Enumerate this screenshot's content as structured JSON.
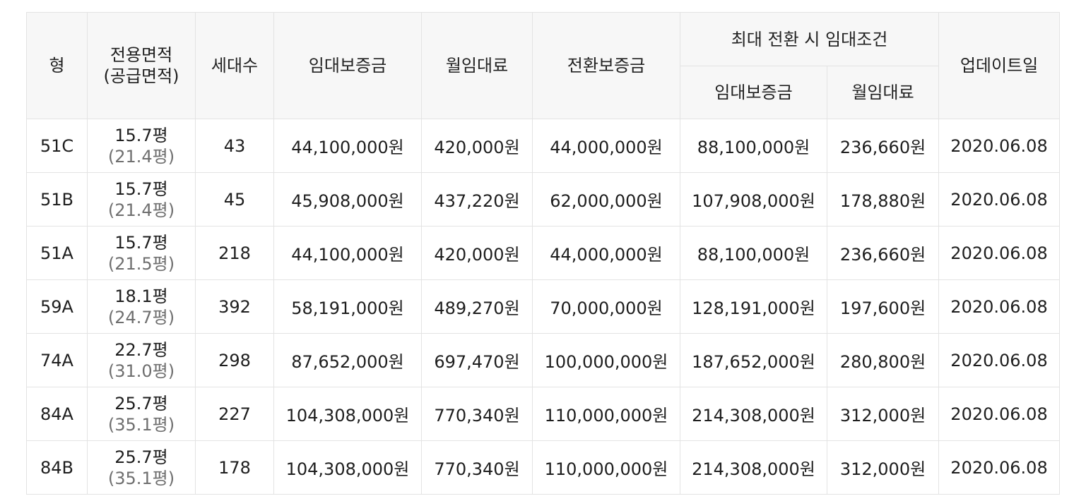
{
  "table": {
    "headers": {
      "type": "형",
      "area_line1": "전용면적",
      "area_line2": "(공급면적)",
      "households": "세대수",
      "deposit": "임대보증금",
      "monthly_rent": "월임대료",
      "conversion_deposit": "전환보증금",
      "max_conversion_group": "최대 전환 시 임대조건",
      "max_deposit": "임대보증금",
      "max_monthly_rent": "월임대료",
      "updated": "업데이트일"
    },
    "rows": [
      {
        "type": "51C",
        "area": "15.7평",
        "supply_area": "(21.4평)",
        "households": "43",
        "deposit": "44,100,000원",
        "monthly_rent": "420,000원",
        "conversion_deposit": "44,000,000원",
        "max_deposit": "88,100,000원",
        "max_monthly_rent": "236,660원",
        "updated": "2020.06.08"
      },
      {
        "type": "51B",
        "area": "15.7평",
        "supply_area": "(21.4평)",
        "households": "45",
        "deposit": "45,908,000원",
        "monthly_rent": "437,220원",
        "conversion_deposit": "62,000,000원",
        "max_deposit": "107,908,000원",
        "max_monthly_rent": "178,880원",
        "updated": "2020.06.08"
      },
      {
        "type": "51A",
        "area": "15.7평",
        "supply_area": "(21.5평)",
        "households": "218",
        "deposit": "44,100,000원",
        "monthly_rent": "420,000원",
        "conversion_deposit": "44,000,000원",
        "max_deposit": "88,100,000원",
        "max_monthly_rent": "236,660원",
        "updated": "2020.06.08"
      },
      {
        "type": "59A",
        "area": "18.1평",
        "supply_area": "(24.7평)",
        "households": "392",
        "deposit": "58,191,000원",
        "monthly_rent": "489,270원",
        "conversion_deposit": "70,000,000원",
        "max_deposit": "128,191,000원",
        "max_monthly_rent": "197,600원",
        "updated": "2020.06.08"
      },
      {
        "type": "74A",
        "area": "22.7평",
        "supply_area": "(31.0평)",
        "households": "298",
        "deposit": "87,652,000원",
        "monthly_rent": "697,470원",
        "conversion_deposit": "100,000,000원",
        "max_deposit": "187,652,000원",
        "max_monthly_rent": "280,800원",
        "updated": "2020.06.08"
      },
      {
        "type": "84A",
        "area": "25.7평",
        "supply_area": "(35.1평)",
        "households": "227",
        "deposit": "104,308,000원",
        "monthly_rent": "770,340원",
        "conversion_deposit": "110,000,000원",
        "max_deposit": "214,308,000원",
        "max_monthly_rent": "312,000원",
        "updated": "2020.06.08"
      },
      {
        "type": "84B",
        "area": "25.7평",
        "supply_area": "(35.1평)",
        "households": "178",
        "deposit": "104,308,000원",
        "monthly_rent": "770,340원",
        "conversion_deposit": "110,000,000원",
        "max_deposit": "214,308,000원",
        "max_monthly_rent": "312,000원",
        "updated": "2020.06.08"
      }
    ]
  }
}
